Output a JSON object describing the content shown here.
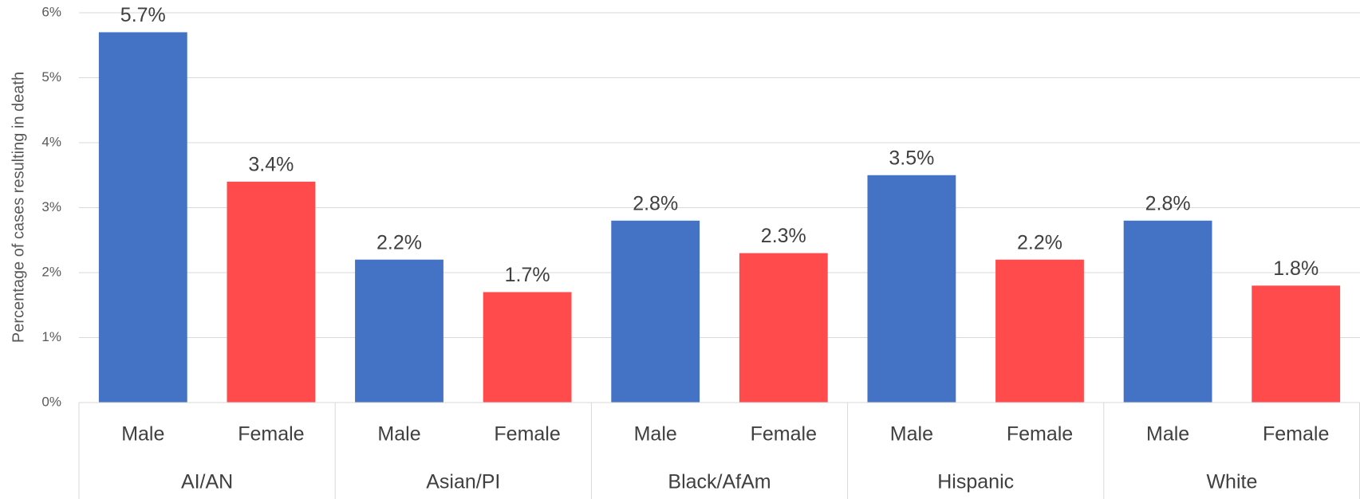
{
  "chart_data": {
    "type": "bar",
    "y_label": "Percentage of cases resulting in death",
    "categories": [
      "Male",
      "Female",
      "Male",
      "Female",
      "Male",
      "Female",
      "Male",
      "Female",
      "Male",
      "Female"
    ],
    "groups": [
      "AI/AN",
      "Asian/PI",
      "Black/AfAm",
      "Hispanic",
      "White"
    ],
    "values": [
      5.7,
      3.4,
      2.2,
      1.7,
      2.8,
      2.3,
      3.5,
      2.2,
      2.8,
      1.8
    ],
    "value_labels": [
      "5.7%",
      "3.4%",
      "2.2%",
      "1.7%",
      "2.8%",
      "2.3%",
      "3.5%",
      "2.2%",
      "2.8%",
      "1.8%"
    ],
    "colors": [
      "#4472c4",
      "#ff4b4b",
      "#4472c4",
      "#ff4b4b",
      "#4472c4",
      "#ff4b4b",
      "#4472c4",
      "#ff4b4b",
      "#4472c4",
      "#ff4b4b"
    ],
    "ylim": [
      0,
      6
    ],
    "yticks": [
      {
        "value": 0,
        "label": "0%"
      },
      {
        "value": 1,
        "label": "1%"
      },
      {
        "value": 2,
        "label": "2%"
      },
      {
        "value": 3,
        "label": "3%"
      },
      {
        "value": 4,
        "label": "4%"
      },
      {
        "value": 5,
        "label": "5%"
      },
      {
        "value": 6,
        "label": "6%"
      }
    ],
    "grid": true
  }
}
